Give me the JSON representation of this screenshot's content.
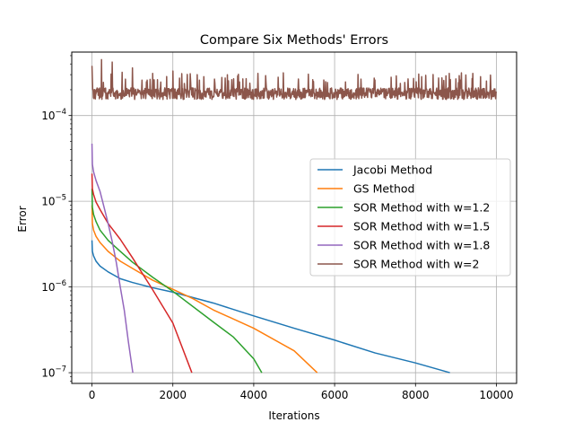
{
  "chart_data": {
    "type": "line",
    "title": "Compare Six Methods' Errors",
    "xlabel": "Iterations",
    "ylabel": "Error",
    "xscale": "linear",
    "yscale": "log",
    "xlim": [
      -500,
      10500
    ],
    "ylim": [
      7.5e-08,
      0.00055
    ],
    "xticks": [
      0,
      2000,
      4000,
      6000,
      8000,
      10000
    ],
    "xtick_labels": [
      "0",
      "2000",
      "4000",
      "6000",
      "8000",
      "10000"
    ],
    "yticks": [
      {
        "value": 1e-07,
        "base": "10",
        "exp": "−7"
      },
      {
        "value": 1e-06,
        "base": "10",
        "exp": "−6"
      },
      {
        "value": 1e-05,
        "base": "10",
        "exp": "−5"
      },
      {
        "value": 0.0001,
        "base": "10",
        "exp": "−4"
      }
    ],
    "grid": true,
    "legend_position": "center-right",
    "series": [
      {
        "name": "Jacobi Method",
        "color": "#1f77b4",
        "points": [
          [
            0,
            3.5e-06
          ],
          [
            10,
            2.6e-06
          ],
          [
            40,
            2.3e-06
          ],
          [
            100,
            2e-06
          ],
          [
            200,
            1.75e-06
          ],
          [
            400,
            1.5e-06
          ],
          [
            700,
            1.25e-06
          ],
          [
            1000,
            1.13e-06
          ],
          [
            1500,
            9.8e-07
          ],
          [
            2000,
            8.7e-07
          ],
          [
            3000,
            6.5e-07
          ],
          [
            4000,
            4.6e-07
          ],
          [
            5000,
            3.3e-07
          ],
          [
            6000,
            2.4e-07
          ],
          [
            7000,
            1.7e-07
          ],
          [
            8000,
            1.3e-07
          ],
          [
            8850,
            1e-07
          ]
        ]
      },
      {
        "name": "GS Method",
        "color": "#ff7f0e",
        "points": [
          [
            0,
            9e-06
          ],
          [
            10,
            5.5e-06
          ],
          [
            40,
            4.6e-06
          ],
          [
            100,
            3.9e-06
          ],
          [
            200,
            3.3e-06
          ],
          [
            400,
            2.6e-06
          ],
          [
            700,
            2e-06
          ],
          [
            1000,
            1.65e-06
          ],
          [
            1500,
            1.2e-06
          ],
          [
            2000,
            9.4e-07
          ],
          [
            2500,
            7.3e-07
          ],
          [
            3000,
            5.4e-07
          ],
          [
            4000,
            3.3e-07
          ],
          [
            5000,
            1.8e-07
          ],
          [
            5570,
            1e-07
          ]
        ]
      },
      {
        "name": "SOR Method with w=1.2",
        "color": "#2ca02c",
        "points": [
          [
            0,
            1.4e-05
          ],
          [
            10,
            8.5e-06
          ],
          [
            40,
            7e-06
          ],
          [
            100,
            5.8e-06
          ],
          [
            200,
            4.6e-06
          ],
          [
            400,
            3.5e-06
          ],
          [
            700,
            2.6e-06
          ],
          [
            1000,
            1.95e-06
          ],
          [
            1500,
            1.3e-06
          ],
          [
            2000,
            8.9e-07
          ],
          [
            3000,
            3.9e-07
          ],
          [
            3500,
            2.6e-07
          ],
          [
            4000,
            1.45e-07
          ],
          [
            4200,
            1e-07
          ]
        ]
      },
      {
        "name": "SOR Method with w=1.5",
        "color": "#d62728",
        "points": [
          [
            0,
            2.1e-05
          ],
          [
            10,
            1.4e-05
          ],
          [
            40,
            1.2e-05
          ],
          [
            100,
            9.8e-06
          ],
          [
            200,
            8e-06
          ],
          [
            400,
            5.5e-06
          ],
          [
            700,
            3.6e-06
          ],
          [
            1000,
            2.2e-06
          ],
          [
            1500,
            9.3e-07
          ],
          [
            2000,
            3.8e-07
          ],
          [
            2470,
            1e-07
          ]
        ]
      },
      {
        "name": "SOR Method with w=1.8",
        "color": "#9467bd",
        "points": [
          [
            0,
            4.7e-05
          ],
          [
            10,
            2.7e-05
          ],
          [
            40,
            2.2e-05
          ],
          [
            100,
            1.75e-05
          ],
          [
            200,
            1.3e-05
          ],
          [
            300,
            8.5e-06
          ],
          [
            400,
            5.5e-06
          ],
          [
            500,
            3.4e-06
          ],
          [
            600,
            1.95e-06
          ],
          [
            700,
            1e-06
          ],
          [
            800,
            5.3e-07
          ],
          [
            900,
            2.3e-07
          ],
          [
            1010,
            1e-07
          ]
        ]
      },
      {
        "name": "SOR Method with w=2",
        "color": "#8c564b",
        "noisy": true,
        "x_start": 0,
        "x_end": 10000,
        "baseline": 0.000175,
        "spikes": [
          [
            0,
            0.00038
          ],
          [
            240,
            0.00045
          ],
          [
            500,
            0.00042
          ],
          [
            750,
            0.00032
          ],
          [
            1000,
            0.00036
          ],
          [
            1500,
            0.00031
          ],
          [
            2000,
            0.00033
          ],
          [
            2600,
            0.0003
          ],
          [
            3600,
            0.00029
          ],
          [
            4100,
            0.00031
          ],
          [
            4600,
            0.00028
          ],
          [
            7400,
            0.00028
          ],
          [
            9400,
            0.00027
          ]
        ]
      }
    ]
  }
}
